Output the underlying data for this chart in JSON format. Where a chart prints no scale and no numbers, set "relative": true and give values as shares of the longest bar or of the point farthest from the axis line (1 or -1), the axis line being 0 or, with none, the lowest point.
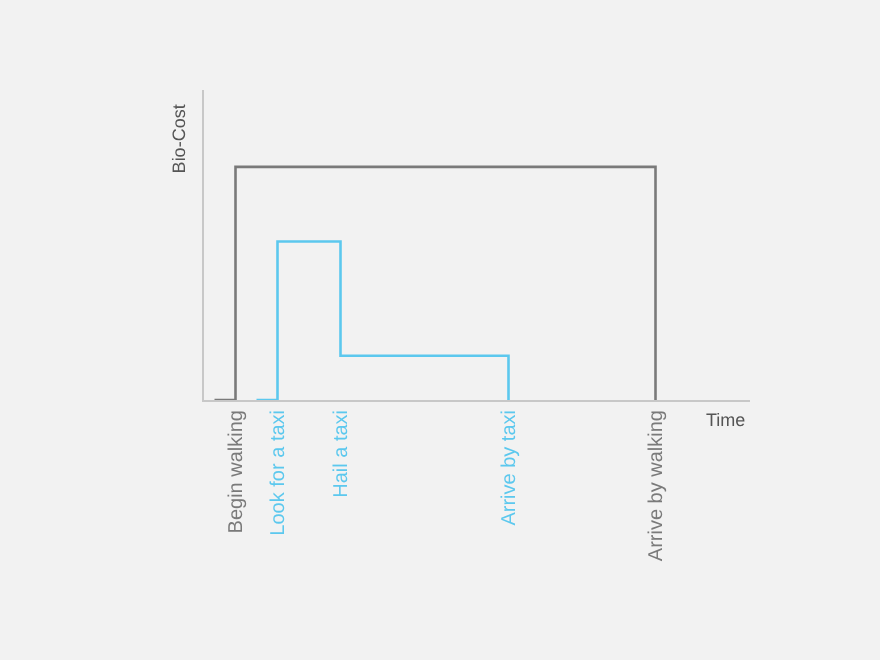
{
  "chart_data": {
    "type": "step",
    "relative": true,
    "xlabel": "Time",
    "ylabel": "Bio-Cost",
    "categories": [
      null,
      "Begin walking",
      null,
      "Look for a taxi",
      null,
      null,
      "Hail a taxi",
      null,
      null,
      null,
      null,
      null,
      null,
      null,
      "Arrive by taxi",
      null,
      null,
      null,
      null,
      null,
      null,
      "Arrive by walking",
      null,
      null,
      null,
      null
    ],
    "series": [
      {
        "color": "#7a7a7a",
        "values": [
          0,
          1,
          1,
          1,
          1,
          1,
          1,
          1,
          1,
          1,
          1,
          1,
          1,
          1,
          1,
          1,
          1,
          1,
          1,
          1,
          1,
          0,
          null,
          null,
          null,
          null
        ]
      },
      {
        "color": "#5cc8ee",
        "values": [
          null,
          null,
          0,
          0.68,
          0.68,
          0.68,
          0.19,
          0.19,
          0.19,
          0.19,
          0.19,
          0.19,
          0.19,
          0.19,
          0,
          null,
          null,
          null,
          null,
          null,
          null,
          null,
          null,
          null,
          null,
          null
        ]
      }
    ],
    "grid": false,
    "marker": "none",
    "line_style": "solid"
  }
}
